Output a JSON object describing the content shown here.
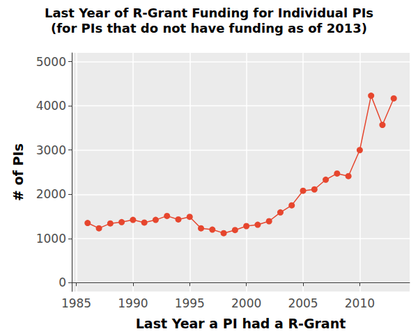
{
  "chart_data": {
    "type": "line",
    "title": "Last Year of R-Grant Funding for Individual PIs",
    "subtitle": "(for PIs that do not have funding as of 2013)",
    "x_label": "Last Year a PI had a R-Grant",
    "y_label": "# of PIs",
    "x": [
      1986,
      1987,
      1988,
      1989,
      1990,
      1991,
      1992,
      1993,
      1994,
      1995,
      1996,
      1997,
      1998,
      1999,
      2000,
      2001,
      2002,
      2003,
      2004,
      2005,
      2006,
      2007,
      2008,
      2009,
      2010,
      2011,
      2012,
      2013
    ],
    "values": [
      1350,
      1230,
      1340,
      1370,
      1420,
      1360,
      1420,
      1510,
      1430,
      1490,
      1230,
      1200,
      1120,
      1190,
      1280,
      1310,
      1390,
      1590,
      1750,
      2080,
      2110,
      2330,
      2470,
      2410,
      3000,
      4230,
      3570,
      4170
    ],
    "color": "#e6462e",
    "marker": "circle",
    "xlim": [
      1984.6,
      2014.4
    ],
    "xticks": [
      1985,
      1990,
      1995,
      2000,
      2005,
      2010
    ],
    "ylim": [
      -200,
      5200
    ],
    "yticks": [
      0,
      1000,
      2000,
      3000,
      4000,
      5000
    ],
    "grid": true
  }
}
